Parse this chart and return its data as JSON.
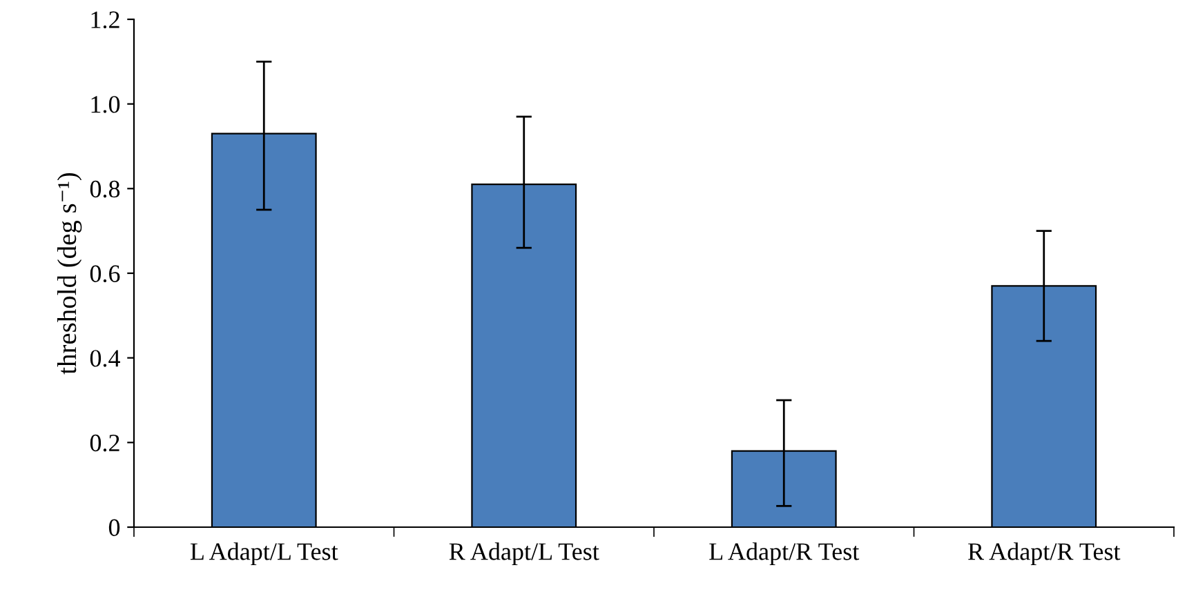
{
  "chart_data": {
    "type": "bar",
    "ylabel": "threshold (deg s⁻¹)",
    "categories": [
      "L Adapt/L Test",
      "R Adapt/L Test",
      "L Adapt/R Test",
      "R Adapt/R Test"
    ],
    "values": [
      0.93,
      0.81,
      0.18,
      0.57
    ],
    "errors": [
      [
        0.75,
        1.1
      ],
      [
        0.66,
        0.97
      ],
      [
        0.05,
        0.3
      ],
      [
        0.44,
        0.7
      ]
    ],
    "color": "#4a7ebb",
    "ylim": [
      0,
      1.2
    ],
    "yticks": [
      0,
      0.2,
      0.4,
      0.6,
      0.8,
      {
        "value": 1,
        "label": "1.0"
      },
      1.2
    ],
    "grid": false,
    "legend": false
  }
}
